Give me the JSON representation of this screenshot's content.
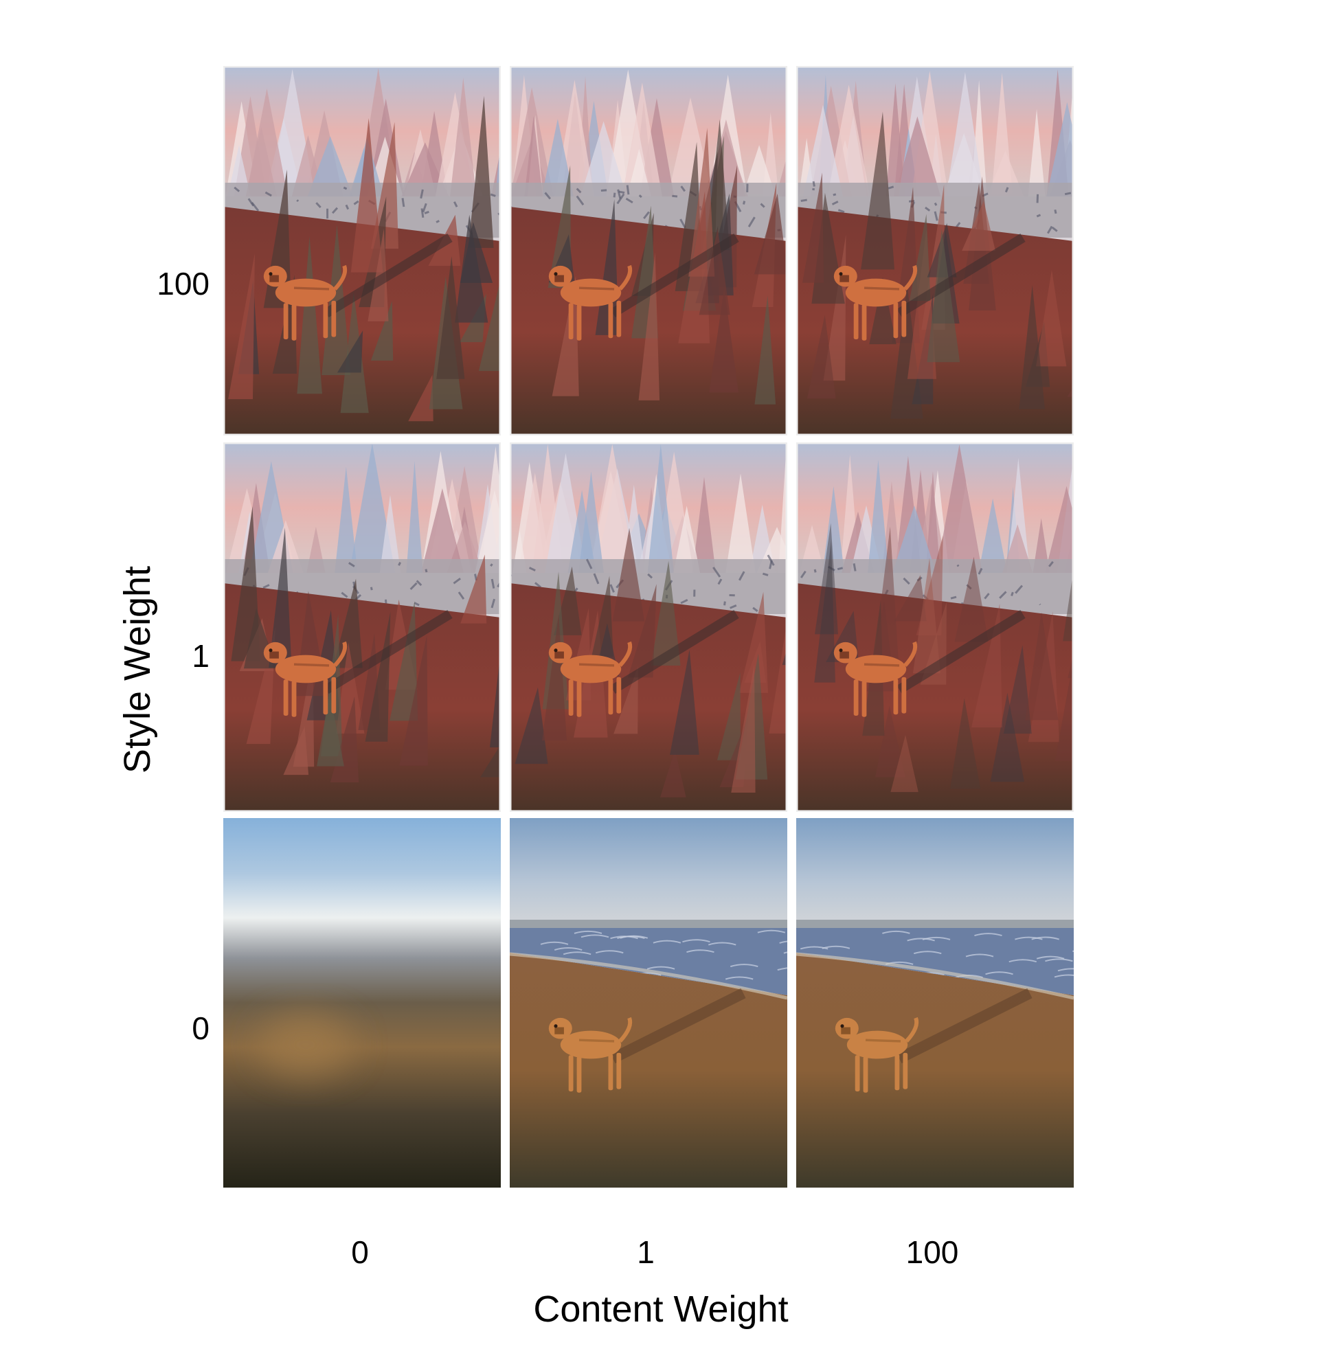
{
  "figure": {
    "y_axis_title": "Style Weight",
    "x_axis_title": "Content Weight",
    "row_labels": [
      "100",
      "1",
      "0"
    ],
    "col_labels": [
      "0",
      "1",
      "100"
    ],
    "cells": [
      {
        "style_weight": "100",
        "content_weight": "0",
        "kind": "stylized",
        "intensity": 1.0
      },
      {
        "style_weight": "100",
        "content_weight": "1",
        "kind": "stylized",
        "intensity": 0.95
      },
      {
        "style_weight": "100",
        "content_weight": "100",
        "kind": "stylized",
        "intensity": 0.85
      },
      {
        "style_weight": "1",
        "content_weight": "0",
        "kind": "stylized",
        "intensity": 0.95
      },
      {
        "style_weight": "1",
        "content_weight": "1",
        "kind": "stylized",
        "intensity": 0.8
      },
      {
        "style_weight": "1",
        "content_weight": "100",
        "kind": "stylized",
        "intensity": 0.55
      },
      {
        "style_weight": "0",
        "content_weight": "0",
        "kind": "blurred",
        "intensity": 0
      },
      {
        "style_weight": "0",
        "content_weight": "1",
        "kind": "photo",
        "intensity": 0
      },
      {
        "style_weight": "0",
        "content_weight": "100",
        "kind": "photo",
        "intensity": 0
      }
    ]
  },
  "colors": {
    "sky_pink": "#e7b4b0",
    "sky_blue": "#9fb3cc",
    "sand_red": "#8a3f35",
    "dog_orange": "#cf7040",
    "beach_sand": "#8a6038",
    "sea_blue": "#6b7fa3"
  }
}
